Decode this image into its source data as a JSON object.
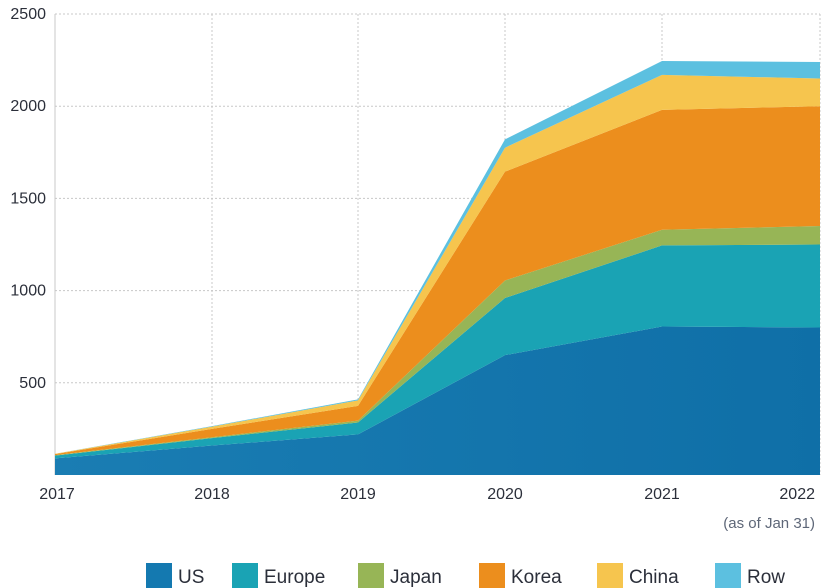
{
  "chart_data": {
    "type": "area",
    "stacked": true,
    "x": [
      "2017",
      "2018",
      "2019",
      "2020",
      "2021",
      "2022"
    ],
    "x_note": "(as of Jan 31)",
    "ylim": [
      0,
      2500
    ],
    "y_ticks": [
      500,
      1000,
      1500,
      2000,
      2500
    ],
    "grid": true,
    "legend_position": "bottom",
    "series": [
      {
        "name": "US",
        "color": "#1479b0",
        "values": [
          90,
          160,
          220,
          650,
          805,
          800
        ]
      },
      {
        "name": "Europe",
        "color": "#1aa3b4",
        "values": [
          15,
          40,
          65,
          310,
          440,
          450
        ]
      },
      {
        "name": "Japan",
        "color": "#97b556",
        "values": [
          3,
          5,
          10,
          95,
          85,
          100
        ]
      },
      {
        "name": "Korea",
        "color": "#ec8e1d",
        "values": [
          5,
          45,
          80,
          590,
          650,
          650
        ]
      },
      {
        "name": "China",
        "color": "#f6c54e",
        "values": [
          2,
          12,
          30,
          130,
          190,
          150
        ]
      },
      {
        "name": "Row",
        "color": "#5cc0e0",
        "values": [
          0,
          3,
          5,
          45,
          75,
          90
        ]
      }
    ]
  }
}
